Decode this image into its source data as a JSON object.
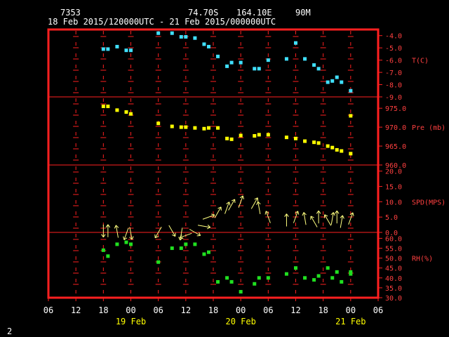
{
  "header": {
    "station_id": "7353",
    "lat": "74.70S",
    "lon": "164.10E",
    "elev": "90M",
    "period": "18 Feb 2015/120000UTC - 21 Feb 2015/000000UTC"
  },
  "page_number": "2",
  "colors": {
    "frame": "#ff2020",
    "grid": "#ff2020",
    "text": "#ffffff",
    "temp": "#40e0ff",
    "pres": "#ffff00",
    "wind": "#ffff80",
    "rh": "#20e020",
    "axis_label": "#ff4040",
    "date_label": "#ffff00"
  },
  "chart_data": {
    "type": "scatter",
    "x_axis": {
      "range_hours": [
        0,
        72
      ],
      "tick_labels": [
        "06",
        "12",
        "18",
        "00",
        "06",
        "12",
        "18",
        "00",
        "06",
        "12",
        "18",
        "00",
        "06"
      ],
      "date_labels": [
        {
          "label": "19 Feb",
          "hour": 18
        },
        {
          "label": "20 Feb",
          "hour": 42
        },
        {
          "label": "21 Feb",
          "hour": 66
        }
      ]
    },
    "panels": [
      {
        "name": "temperature",
        "label": "T(C)",
        "range": [
          -9.0,
          -3.5
        ],
        "ticks": [
          -4.0,
          -5.0,
          -6.0,
          -7.0,
          -8.0,
          -9.0
        ],
        "tick_labels": [
          "-4.0",
          "-5.0",
          "-6.0",
          "-7.0",
          "-8.0",
          "-9.0"
        ],
        "points": [
          [
            12,
            -5.1
          ],
          [
            13,
            -5.1
          ],
          [
            15,
            -4.9
          ],
          [
            17,
            -5.2
          ],
          [
            18,
            -5.2
          ],
          [
            24,
            -3.8
          ],
          [
            27,
            -3.8
          ],
          [
            29,
            -4.1
          ],
          [
            30,
            -4.1
          ],
          [
            32,
            -4.2
          ],
          [
            34,
            -4.7
          ],
          [
            35,
            -4.9
          ],
          [
            37,
            -5.7
          ],
          [
            39,
            -6.5
          ],
          [
            40,
            -6.2
          ],
          [
            42,
            -6.2
          ],
          [
            45,
            -6.7
          ],
          [
            46,
            -6.7
          ],
          [
            48,
            -6.0
          ],
          [
            52,
            -5.9
          ],
          [
            54,
            -4.6
          ],
          [
            56,
            -5.9
          ],
          [
            58,
            -6.4
          ],
          [
            59,
            -6.7
          ],
          [
            61,
            -7.8
          ],
          [
            62,
            -7.7
          ],
          [
            63,
            -7.4
          ],
          [
            64,
            -7.8
          ],
          [
            66,
            -8.5
          ]
        ]
      },
      {
        "name": "pressure",
        "label": "Pre (mb)",
        "range": [
          960.0,
          978.0
        ],
        "ticks": [
          975.0,
          970.0,
          965.0,
          960.0
        ],
        "tick_labels": [
          "975.0",
          "970.0",
          "965.0",
          "960.0"
        ],
        "points": [
          [
            12,
            975.5
          ],
          [
            13,
            975.5
          ],
          [
            15,
            974.5
          ],
          [
            17,
            974.0
          ],
          [
            18,
            973.5
          ],
          [
            24,
            971.0
          ],
          [
            27,
            970.2
          ],
          [
            29,
            970.0
          ],
          [
            30,
            970.0
          ],
          [
            32,
            969.8
          ],
          [
            34,
            969.6
          ],
          [
            35,
            969.8
          ],
          [
            37,
            969.8
          ],
          [
            39,
            967.0
          ],
          [
            40,
            966.8
          ],
          [
            42,
            967.8
          ],
          [
            45,
            967.7
          ],
          [
            46,
            968.0
          ],
          [
            48,
            968.0
          ],
          [
            52,
            967.3
          ],
          [
            54,
            967.0
          ],
          [
            56,
            966.3
          ],
          [
            58,
            966.0
          ],
          [
            59,
            965.8
          ],
          [
            61,
            965.0
          ],
          [
            62,
            964.6
          ],
          [
            63,
            964.0
          ],
          [
            64,
            963.7
          ],
          [
            66,
            963.0
          ],
          [
            66,
            973.0
          ]
        ]
      },
      {
        "name": "wind",
        "label": "SPD(MPS)",
        "range": [
          0.0,
          22.0
        ],
        "ticks": [
          20.0,
          15.0,
          10.0,
          5.0,
          0.0
        ],
        "tick_labels": [
          "20.0",
          "15.0",
          "10.0",
          "5.0",
          "0.0"
        ],
        "points": [
          [
            12,
            0.5,
            270
          ],
          [
            13,
            0.5,
            90
          ],
          [
            15,
            0.3,
            100
          ],
          [
            17,
            -0.5,
            250
          ],
          [
            18,
            -0.3,
            280
          ],
          [
            24,
            0.0,
            240
          ],
          [
            27,
            0.5,
            300
          ],
          [
            29,
            -0.5,
            260
          ],
          [
            30,
            -1.0,
            200
          ],
          [
            32,
            0.0,
            330
          ],
          [
            34,
            2.0,
            350
          ],
          [
            35,
            5.0,
            20
          ],
          [
            37,
            6.5,
            60
          ],
          [
            39,
            8.0,
            70
          ],
          [
            40,
            9.0,
            60
          ],
          [
            42,
            10.0,
            70
          ],
          [
            45,
            9.5,
            60
          ],
          [
            46,
            8.0,
            100
          ],
          [
            48,
            5.0,
            110
          ],
          [
            52,
            4.0,
            90
          ],
          [
            54,
            5.0,
            70
          ],
          [
            56,
            4.5,
            100
          ],
          [
            58,
            3.5,
            120
          ],
          [
            59,
            5.0,
            90
          ],
          [
            61,
            4.0,
            120
          ],
          [
            62,
            4.5,
            80
          ],
          [
            63,
            5.0,
            90
          ],
          [
            64,
            3.5,
            80
          ],
          [
            66,
            4.5,
            70
          ]
        ]
      },
      {
        "name": "relative_humidity",
        "label": "RH(%)",
        "range": [
          30.0,
          63.0
        ],
        "ticks": [
          60.0,
          55.0,
          50.0,
          45.0,
          40.0,
          35.0,
          30.0
        ],
        "tick_labels": [
          "60.0",
          "55.0",
          "50.0",
          "45.0",
          "40.0",
          "35.0",
          "30.0"
        ],
        "points": [
          [
            12,
            54
          ],
          [
            13,
            51
          ],
          [
            15,
            57
          ],
          [
            17,
            58
          ],
          [
            18,
            57
          ],
          [
            24,
            48
          ],
          [
            27,
            55
          ],
          [
            29,
            55
          ],
          [
            30,
            57
          ],
          [
            32,
            57
          ],
          [
            34,
            52
          ],
          [
            35,
            53
          ],
          [
            37,
            38
          ],
          [
            39,
            40
          ],
          [
            40,
            38
          ],
          [
            42,
            33
          ],
          [
            45,
            37
          ],
          [
            46,
            40
          ],
          [
            48,
            40
          ],
          [
            52,
            42
          ],
          [
            54,
            45
          ],
          [
            56,
            40
          ],
          [
            58,
            39
          ],
          [
            59,
            41
          ],
          [
            61,
            45
          ],
          [
            62,
            40
          ],
          [
            63,
            43
          ],
          [
            64,
            38
          ],
          [
            66,
            42
          ],
          [
            66,
            43
          ]
        ]
      }
    ]
  }
}
